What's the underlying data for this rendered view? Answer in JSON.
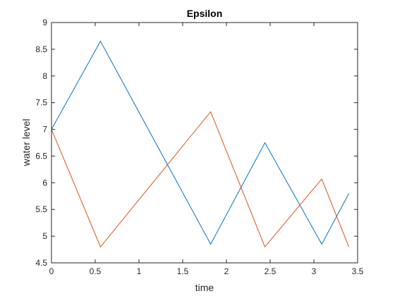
{
  "chart_data": {
    "type": "line",
    "title": "Epsilon",
    "xlabel": "time",
    "ylabel": "water level",
    "xlim": [
      0,
      3.5
    ],
    "ylim": [
      4.5,
      9
    ],
    "xticks": [
      0,
      0.5,
      1,
      1.5,
      2,
      2.5,
      3,
      3.5
    ],
    "xtick_labels": [
      "0",
      "0.5",
      "1",
      "1.5",
      "2",
      "2.5",
      "3",
      "3.5"
    ],
    "yticks": [
      4.5,
      5,
      5.5,
      6,
      6.5,
      7,
      7.5,
      8,
      8.5,
      9
    ],
    "ytick_labels": [
      "4.5",
      "5",
      "5.5",
      "6",
      "6.5",
      "7",
      "7.5",
      "8",
      "8.5",
      "9"
    ],
    "grid": false,
    "series": [
      {
        "color": "#0072BD",
        "x": [
          0,
          0.56,
          1.82,
          2.44,
          3.09,
          3.4
        ],
        "y": [
          7.0,
          8.65,
          4.85,
          6.75,
          4.85,
          5.8
        ]
      },
      {
        "color": "#D95319",
        "x": [
          0,
          0.56,
          1.82,
          2.44,
          3.09,
          3.4
        ],
        "y": [
          7.0,
          4.8,
          7.33,
          4.8,
          6.07,
          4.8
        ]
      }
    ]
  }
}
